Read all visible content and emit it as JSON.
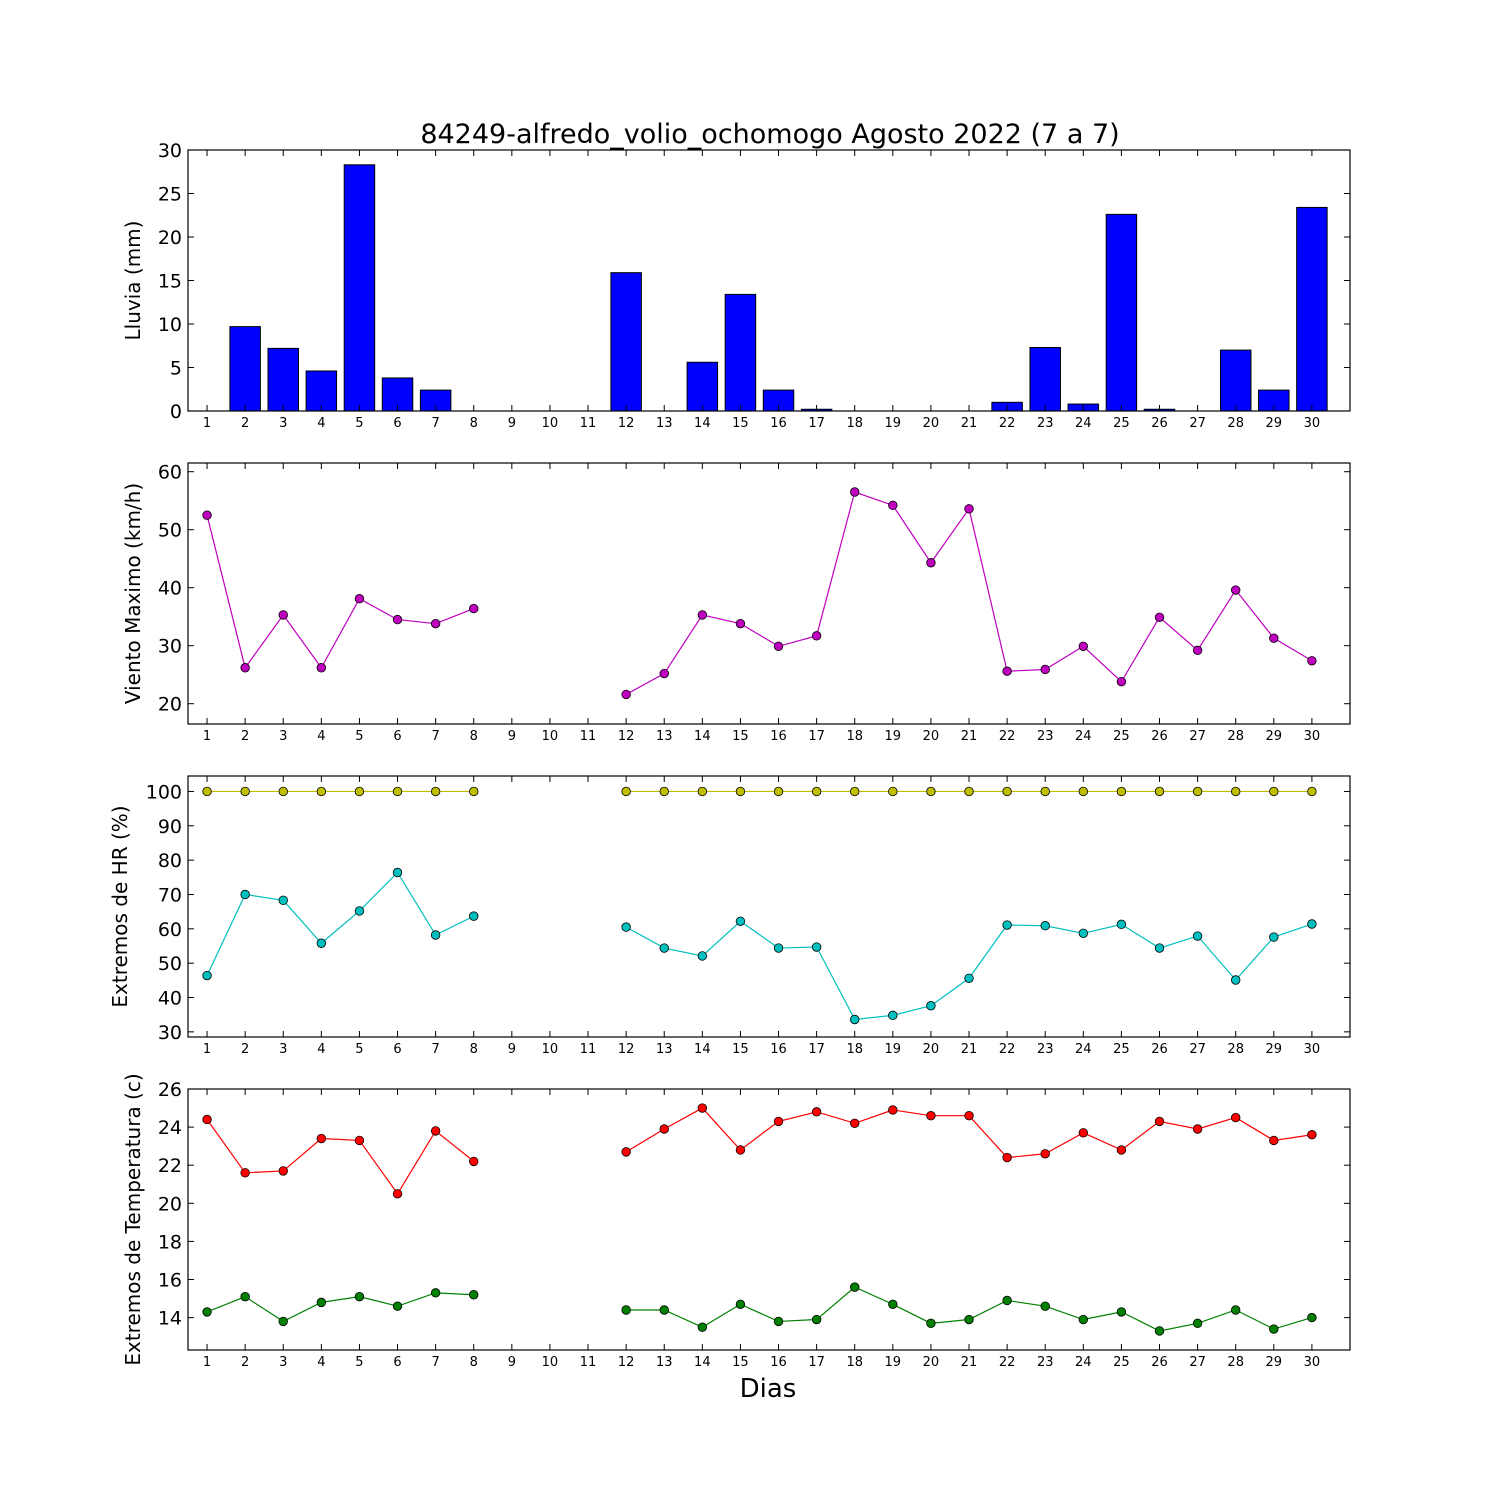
{
  "chart_data": {
    "title": "84249-alfredo_volio_ochomogo Agosto 2022  (7 a 7)",
    "xlabel": "Dias",
    "days": [
      1,
      2,
      3,
      4,
      5,
      6,
      7,
      8,
      9,
      10,
      11,
      12,
      13,
      14,
      15,
      16,
      17,
      18,
      19,
      20,
      21,
      22,
      23,
      24,
      25,
      26,
      27,
      28,
      29,
      30
    ],
    "x_tick_labels": [
      "1",
      "2",
      "3",
      "4",
      "5",
      "6",
      "7",
      "8",
      "9",
      "10",
      "11",
      "12",
      "13",
      "14",
      "15",
      "16",
      "17",
      "18",
      "19",
      "20",
      "21",
      "22",
      "23",
      "24",
      "25",
      "26",
      "27",
      "28",
      "29",
      "30"
    ],
    "panels": [
      {
        "type": "bar",
        "ylabel": "Lluvia (mm)",
        "ylim": [
          0,
          30
        ],
        "yticks": [
          0,
          5,
          10,
          15,
          20,
          25,
          30
        ],
        "series": [
          {
            "color": "#0000ff",
            "values": [
              0,
              9.7,
              7.2,
              4.6,
              28.3,
              3.8,
              2.4,
              0,
              0,
              0,
              0,
              15.9,
              0,
              5.6,
              13.4,
              2.4,
              0.2,
              0,
              0,
              0,
              0,
              1.0,
              7.3,
              0.8,
              22.6,
              0.2,
              0,
              7.0,
              2.4,
              23.4
            ]
          }
        ]
      },
      {
        "type": "line",
        "ylabel": "Viento Maximo (km/h)",
        "ylim": [
          16.5,
          61.5
        ],
        "yticks": [
          20,
          30,
          40,
          50,
          60
        ],
        "series": [
          {
            "color": "#bf00bf",
            "values": [
              52.5,
              26.2,
              35.3,
              26.2,
              38.1,
              34.5,
              33.8,
              36.4,
              null,
              null,
              null,
              21.6,
              25.2,
              35.3,
              33.8,
              29.9,
              31.7,
              56.5,
              54.2,
              44.3,
              53.6,
              25.6,
              25.9,
              29.9,
              23.8,
              34.9,
              29.2,
              39.6,
              31.3,
              27.4
            ]
          }
        ]
      },
      {
        "type": "line",
        "ylabel": "Extremos de HR (%)",
        "ylim": [
          28.5,
          104.5
        ],
        "yticks": [
          30,
          40,
          50,
          60,
          70,
          80,
          90,
          100
        ],
        "series": [
          {
            "color": "#bfbf00",
            "values": [
              100,
              100,
              100,
              100,
              100,
              100,
              100,
              100,
              null,
              null,
              null,
              100,
              100,
              100,
              100,
              100,
              100,
              100,
              100,
              100,
              100,
              100,
              100,
              100,
              100,
              100,
              100,
              100,
              100,
              100
            ]
          },
          {
            "color": "#00bfbf",
            "values": [
              46.4,
              70.0,
              68.3,
              55.8,
              65.2,
              76.4,
              58.2,
              63.7,
              null,
              null,
              null,
              60.5,
              54.4,
              52.1,
              62.2,
              54.4,
              54.7,
              33.6,
              34.8,
              37.6,
              45.6,
              61.1,
              60.9,
              58.7,
              61.3,
              54.4,
              57.9,
              45.1,
              57.6,
              61.4
            ]
          }
        ]
      },
      {
        "type": "line",
        "ylabel": "Extremos de Temperatura (c)",
        "ylim": [
          12.3,
          26.0
        ],
        "yticks": [
          14,
          16,
          18,
          20,
          22,
          24,
          26
        ],
        "series": [
          {
            "color": "#ff0000",
            "values": [
              24.4,
              21.6,
              21.7,
              23.4,
              23.3,
              20.5,
              23.8,
              22.2,
              null,
              null,
              null,
              22.7,
              23.9,
              25.0,
              22.8,
              24.3,
              24.8,
              24.2,
              24.9,
              24.6,
              24.6,
              22.4,
              22.6,
              23.7,
              22.8,
              24.3,
              23.9,
              24.5,
              23.3,
              23.6
            ]
          },
          {
            "color": "#008000",
            "values": [
              14.3,
              15.1,
              13.8,
              14.8,
              15.1,
              14.6,
              15.3,
              15.2,
              null,
              null,
              null,
              14.4,
              14.4,
              13.5,
              14.7,
              13.8,
              13.9,
              15.6,
              14.7,
              13.7,
              13.9,
              14.9,
              14.6,
              13.9,
              14.3,
              13.3,
              13.7,
              14.4,
              13.4,
              14.0
            ]
          }
        ]
      }
    ]
  }
}
